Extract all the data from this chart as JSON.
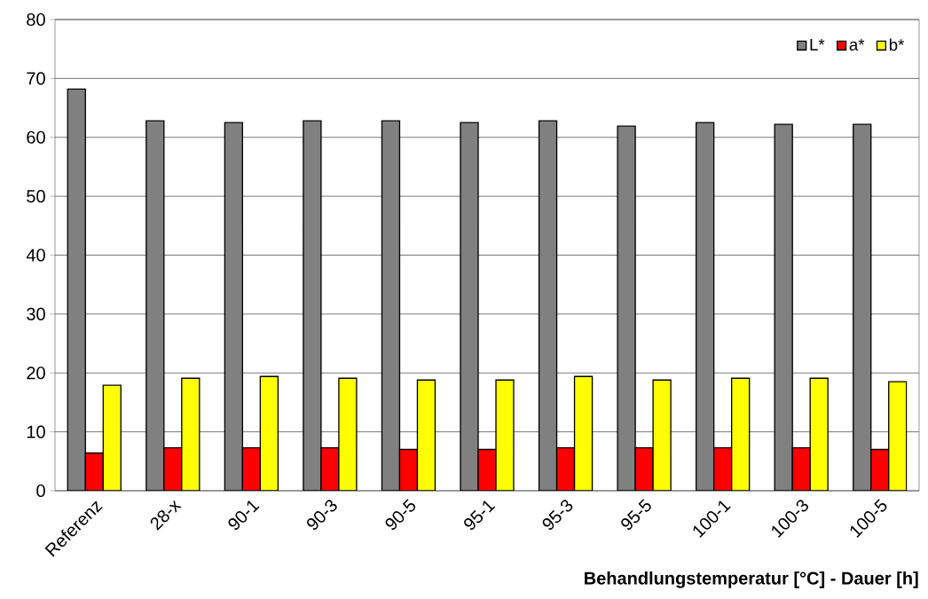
{
  "chart_data": {
    "type": "bar",
    "xlabel": "Behandlungstemperatur [°C] - Dauer [h]",
    "categories": [
      "Referenz",
      "28-x",
      "90-1",
      "90-3",
      "90-5",
      "95-1",
      "95-3",
      "95-5",
      "100-1",
      "100-3",
      "100-5"
    ],
    "series": [
      {
        "name": "L*",
        "color": "#808080",
        "values": [
          68.2,
          62.8,
          62.5,
          62.8,
          62.8,
          62.5,
          62.8,
          61.9,
          62.5,
          62.2,
          62.2
        ]
      },
      {
        "name": "a*",
        "color": "#ff0000",
        "values": [
          6.4,
          7.3,
          7.3,
          7.3,
          7.0,
          7.0,
          7.3,
          7.3,
          7.3,
          7.3,
          7.0
        ]
      },
      {
        "name": "b*",
        "color": "#ffff00",
        "values": [
          17.9,
          19.1,
          19.4,
          19.1,
          18.8,
          18.8,
          19.4,
          18.8,
          19.1,
          19.1,
          18.5
        ]
      }
    ],
    "ylim": [
      0,
      80
    ],
    "yticks": [
      0,
      10,
      20,
      30,
      40,
      50,
      60,
      70,
      80
    ],
    "grid": "y",
    "legend": "top right"
  }
}
